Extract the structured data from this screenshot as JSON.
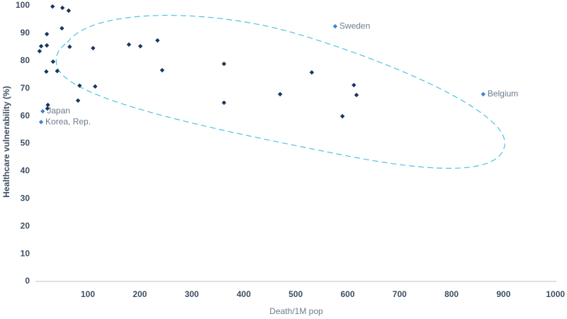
{
  "chart_data": {
    "type": "scatter",
    "x_label": "Death/1M pop",
    "y_label": "Healthcare vulnerability (%)",
    "xlim": [
      0,
      1000
    ],
    "xticks": [
      100,
      200,
      300,
      400,
      500,
      600,
      700,
      800,
      900,
      1000
    ],
    "ylim": [
      0,
      100
    ],
    "yticks": [
      0,
      10,
      20,
      30,
      40,
      50,
      60,
      70,
      80,
      90,
      100
    ],
    "series": [
      {
        "color": "#17375e",
        "x": [
          7,
          10,
          21,
          21,
          20,
          32,
          33,
          41,
          50,
          51,
          63,
          65,
          84,
          81,
          110,
          114,
          179,
          201,
          234,
          243,
          362,
          362,
          470,
          531,
          590,
          612,
          617,
          23,
          22
        ],
        "values": [
          83.5,
          85.3,
          89.7,
          85.6,
          76.1,
          99.7,
          79.7,
          76.3,
          91.8,
          99.2,
          98.2,
          85.1,
          71,
          65.6,
          84.6,
          70.7,
          85.9,
          85.3,
          87.4,
          76.6,
          78.9,
          64.8,
          67.9,
          75.8,
          59.9,
          71.2,
          67.6,
          64,
          62.7
        ]
      },
      {
        "color": "#3a86d4",
        "x": [
          576,
          861,
          13,
          10
        ],
        "values": [
          92.5,
          67.9,
          61.7,
          57.8
        ],
        "point_labels": [
          "Sweden",
          "Belgium",
          "Japan",
          "Korea, Rep."
        ]
      }
    ]
  }
}
